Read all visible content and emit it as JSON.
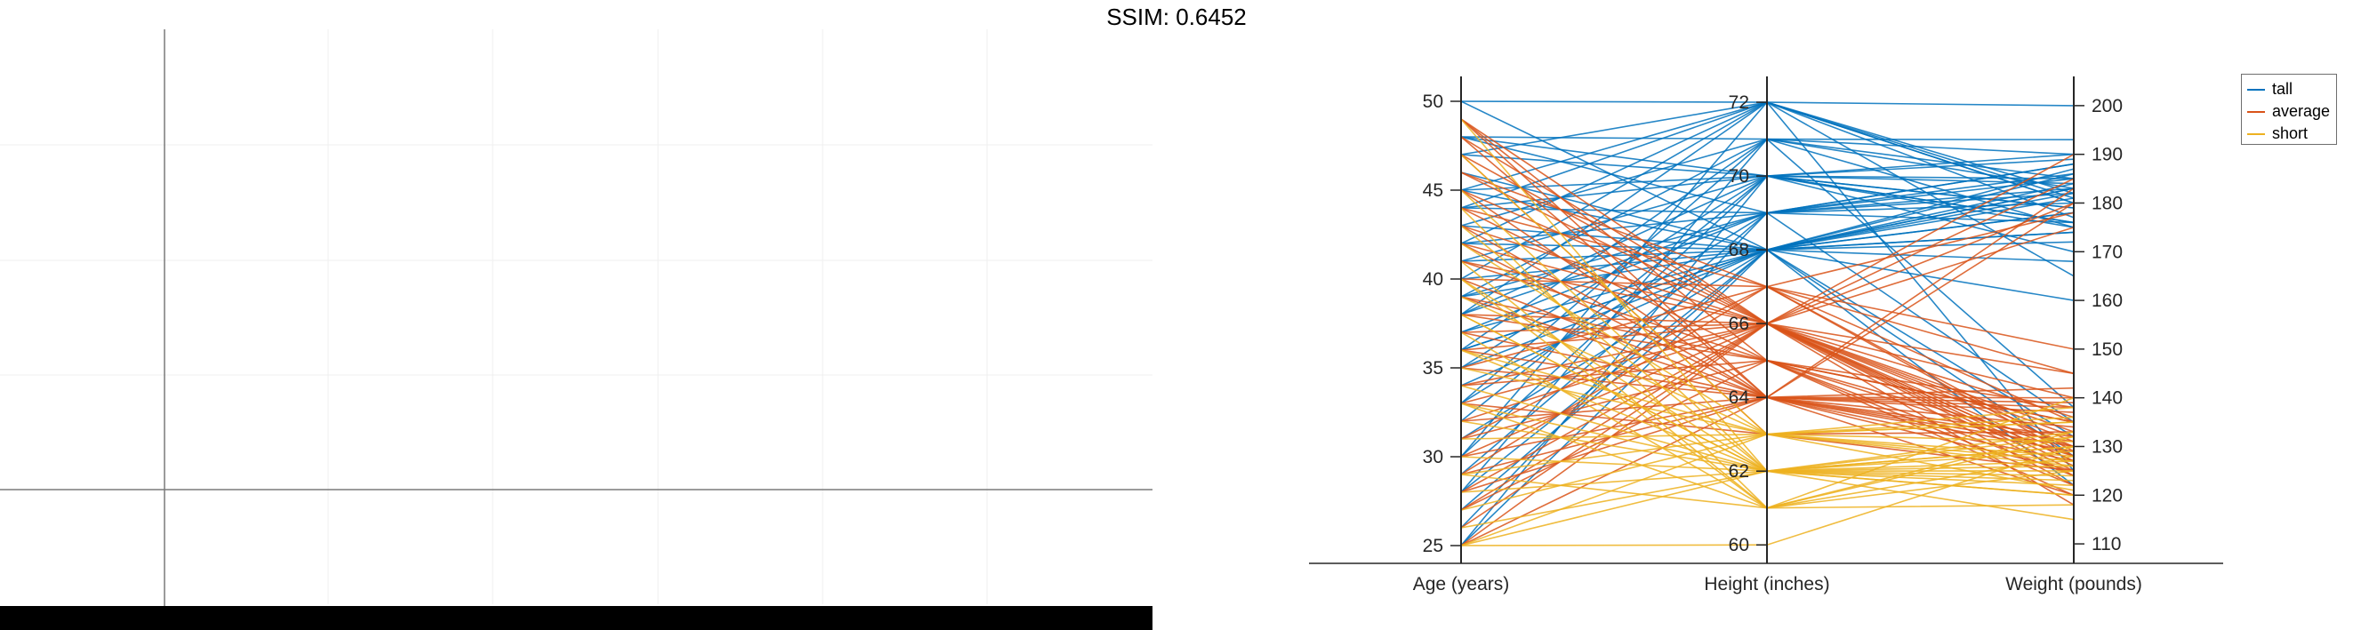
{
  "header": {
    "title": "SSIM: 0.6452"
  },
  "left_panel": {
    "description_free": true
  },
  "chart_data": {
    "type": "parallel-coordinates",
    "axes": [
      {
        "label": "Age (years)",
        "min": 25,
        "max": 50,
        "ticks": [
          25,
          30,
          35,
          40,
          45,
          50
        ],
        "range": [
          24,
          51.4
        ]
      },
      {
        "label": "Height (inches)",
        "min": 60,
        "max": 72,
        "ticks": [
          60,
          62,
          64,
          66,
          68,
          70,
          72
        ],
        "range": [
          59.5,
          72.7
        ]
      },
      {
        "label": "Weight (pounds)",
        "min": 110,
        "max": 200,
        "ticks": [
          110,
          120,
          130,
          140,
          150,
          160,
          170,
          180,
          190,
          200
        ],
        "range": [
          106,
          206
        ]
      }
    ],
    "legend": {
      "position": "top-right",
      "entries": [
        "tall",
        "average",
        "short"
      ]
    },
    "colors": {
      "tall": "#0072bd",
      "average": "#d95319",
      "short": "#edb120"
    },
    "series": [
      {
        "name": "tall",
        "lines": [
          [
            50,
            72,
            200
          ],
          [
            48,
            70,
            190
          ],
          [
            48,
            71,
            185
          ],
          [
            47,
            72,
            180
          ],
          [
            45,
            70,
            175
          ],
          [
            45,
            68,
            182
          ],
          [
            44,
            69,
            188
          ],
          [
            44,
            70,
            170
          ],
          [
            43,
            71,
            193
          ],
          [
            42,
            69,
            176
          ],
          [
            42,
            68,
            160
          ],
          [
            41,
            70,
            185
          ],
          [
            40,
            72,
            165
          ],
          [
            39,
            69,
            183
          ],
          [
            39,
            68,
            178
          ],
          [
            38,
            72,
            181
          ],
          [
            38,
            70,
            179
          ],
          [
            37,
            68,
            172
          ],
          [
            37,
            69,
            186
          ],
          [
            36,
            71,
            175
          ],
          [
            36,
            68,
            183
          ],
          [
            35,
            70,
            189
          ],
          [
            34,
            68,
            168
          ],
          [
            33,
            69,
            180
          ],
          [
            32,
            70,
            184
          ],
          [
            31,
            68,
            187
          ],
          [
            30,
            72,
            177
          ],
          [
            29,
            69,
            182
          ],
          [
            28,
            68,
            178
          ],
          [
            28,
            71,
            190
          ],
          [
            27,
            68,
            174
          ],
          [
            26,
            69,
            185
          ],
          [
            25,
            68,
            183
          ],
          [
            25,
            70,
            176
          ],
          [
            46,
            68,
            128
          ],
          [
            44,
            72,
            125
          ],
          [
            41,
            68,
            132
          ],
          [
            39,
            71,
            138
          ],
          [
            36,
            68,
            122
          ],
          [
            48,
            69,
            135
          ],
          [
            45,
            72,
            182
          ],
          [
            43,
            68,
            186
          ],
          [
            40,
            68,
            184
          ],
          [
            35,
            68,
            181
          ],
          [
            30,
            70,
            179
          ],
          [
            50,
            68,
            174
          ],
          [
            47,
            70,
            176
          ],
          [
            33,
            71,
            183
          ],
          [
            38,
            69,
            188
          ],
          [
            42,
            72,
            180
          ]
        ]
      },
      {
        "name": "average",
        "lines": [
          [
            49,
            66,
            130
          ],
          [
            49,
            65,
            120
          ],
          [
            48,
            64,
            140
          ],
          [
            48,
            66,
            118
          ],
          [
            47,
            63,
            133
          ],
          [
            46,
            67,
            145
          ],
          [
            45,
            66,
            125
          ],
          [
            44,
            65,
            135
          ],
          [
            43,
            64,
            180
          ],
          [
            42,
            66,
            128
          ],
          [
            41,
            66,
            122
          ],
          [
            40,
            67,
            150
          ],
          [
            40,
            64,
            138
          ],
          [
            39,
            65,
            130
          ],
          [
            38,
            66,
            127
          ],
          [
            37,
            64,
            142
          ],
          [
            36,
            66,
            124
          ],
          [
            35,
            67,
            135
          ],
          [
            35,
            64,
            132
          ],
          [
            34,
            65,
            128
          ],
          [
            33,
            66,
            145
          ],
          [
            33,
            63,
            125
          ],
          [
            32,
            66,
            180
          ],
          [
            31,
            65,
            138
          ],
          [
            30,
            66,
            185
          ],
          [
            30,
            64,
            131
          ],
          [
            29,
            67,
            129
          ],
          [
            28,
            66,
            140
          ],
          [
            28,
            64,
            120
          ],
          [
            27,
            65,
            135
          ],
          [
            26,
            66,
            190
          ],
          [
            25,
            64,
            127
          ],
          [
            25,
            66,
            133
          ],
          [
            47,
            66,
            126
          ],
          [
            45,
            64,
            129
          ],
          [
            43,
            66,
            136
          ],
          [
            41,
            65,
            124
          ],
          [
            39,
            64,
            137
          ],
          [
            37,
            66,
            131
          ],
          [
            31,
            67,
            178
          ],
          [
            29,
            64,
            183
          ],
          [
            27,
            66,
            175
          ],
          [
            49,
            64,
            125
          ],
          [
            46,
            66,
            132
          ],
          [
            44,
            67,
            128
          ],
          [
            42,
            64,
            134
          ],
          [
            38,
            65,
            122
          ],
          [
            36,
            64,
            139
          ],
          [
            34,
            66,
            127
          ],
          [
            32,
            64,
            130
          ]
        ]
      },
      {
        "name": "short",
        "lines": [
          [
            49,
            62,
            130
          ],
          [
            47,
            63,
            128
          ],
          [
            45,
            62,
            125
          ],
          [
            44,
            61,
            132
          ],
          [
            43,
            62,
            120
          ],
          [
            42,
            63,
            135
          ],
          [
            41,
            61,
            140
          ],
          [
            40,
            62,
            127
          ],
          [
            39,
            63,
            131
          ],
          [
            38,
            62,
            122
          ],
          [
            37,
            61,
            133
          ],
          [
            36,
            62,
            129
          ],
          [
            35,
            63,
            136
          ],
          [
            34,
            62,
            124
          ],
          [
            33,
            61,
            118
          ],
          [
            32,
            62,
            130
          ],
          [
            31,
            63,
            126
          ],
          [
            30,
            62,
            132
          ],
          [
            29,
            61,
            128
          ],
          [
            28,
            62,
            123
          ],
          [
            27,
            63,
            138
          ],
          [
            26,
            62,
            115
          ],
          [
            25,
            62,
            120
          ],
          [
            25,
            63,
            135
          ],
          [
            25,
            60,
            130
          ],
          [
            38,
            62,
            126
          ],
          [
            36,
            63,
            121
          ],
          [
            40,
            61,
            125
          ],
          [
            29,
            63,
            127
          ],
          [
            33,
            62,
            133
          ]
        ]
      }
    ]
  }
}
